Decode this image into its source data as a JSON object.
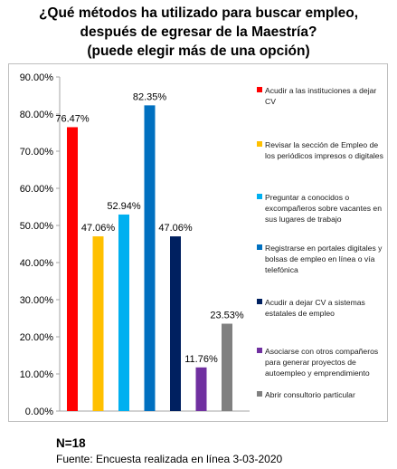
{
  "chart_data": {
    "type": "bar",
    "title_lines": [
      "¿Qué métodos ha utilizado para buscar empleo,",
      "después de egresar de la Maestría?",
      "(puede elegir más de una opción)"
    ],
    "xlabel": "",
    "ylabel": "",
    "ylim": [
      0,
      90
    ],
    "yticks": [
      "0.00%",
      "10.00%",
      "20.00%",
      "30.00%",
      "40.00%",
      "50.00%",
      "60.00%",
      "70.00%",
      "80.00%",
      "90.00%"
    ],
    "grid": false,
    "legend_position": "right",
    "series": [
      {
        "name": "Acudir a las instituciones a dejar CV",
        "value": 76.47,
        "label": "76.47%",
        "color": "#ff0000"
      },
      {
        "name": "Revisar la sección de Empleo de los periódicos impresos o digitales",
        "value": 47.06,
        "label": "47.06%",
        "color": "#ffc000"
      },
      {
        "name": "Preguntar a conocidos o excompañeros sobre vacantes en sus lugares de trabajo",
        "value": 52.94,
        "label": "52.94%",
        "color": "#00b0f0"
      },
      {
        "name": "Registrarse en portales digitales y bolsas de empleo en línea o vía telefónica",
        "value": 82.35,
        "label": "82.35%",
        "color": "#0070c0"
      },
      {
        "name": "Acudir a dejar CV a sistemas estatales de empleo",
        "value": 47.06,
        "label": "47.06%",
        "color": "#002060"
      },
      {
        "name": "Asociarse con otros compañeros para generar proyectos de autoempleo y emprendimiento",
        "value": 11.76,
        "label": "11.76%",
        "color": "#7030a0"
      },
      {
        "name": "Abrir consultorio particular",
        "value": 23.53,
        "label": "23.53%",
        "color": "#808080"
      }
    ]
  },
  "footer": {
    "n_label": "N=18",
    "source": "Fuente: Encuesta realizada en línea 3-03-2020"
  }
}
